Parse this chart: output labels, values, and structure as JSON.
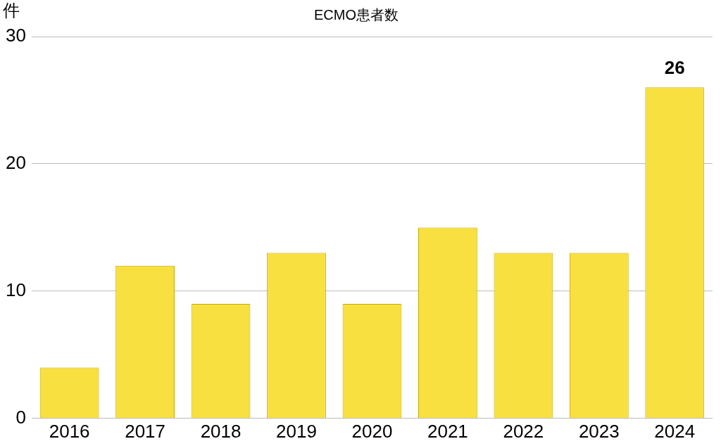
{
  "chart_data": {
    "type": "bar",
    "title": "ECMO患者数",
    "ylabel": "件",
    "categories": [
      "2016",
      "2017",
      "2018",
      "2019",
      "2020",
      "2021",
      "2022",
      "2023",
      "2024"
    ],
    "values": [
      4,
      12,
      9,
      13,
      9,
      15,
      13,
      13,
      26
    ],
    "color": "#f7e040",
    "value_labels": [
      null,
      null,
      null,
      null,
      null,
      null,
      null,
      null,
      "26"
    ],
    "ylim": [
      0,
      30
    ],
    "yticks": [
      0,
      10,
      20,
      30
    ],
    "grid": "y",
    "legend": false
  }
}
